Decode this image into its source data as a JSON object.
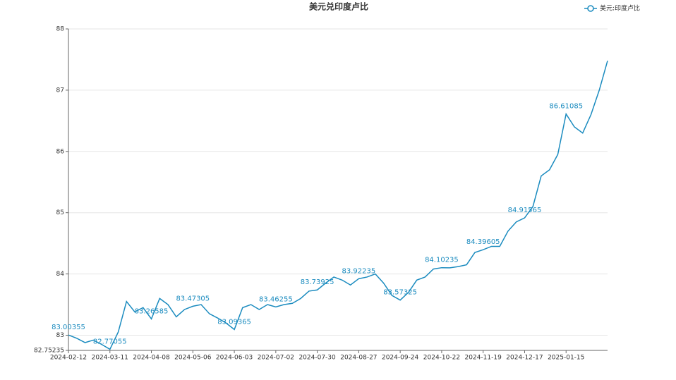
{
  "chart_data": {
    "type": "line",
    "title": "美元兑印度卢比",
    "categories": [
      "2024-02-12",
      null,
      null,
      null,
      null,
      "2024-03-11",
      null,
      null,
      null,
      null,
      "2024-04-08",
      null,
      null,
      null,
      null,
      "2024-05-06",
      null,
      null,
      null,
      null,
      "2024-06-03",
      null,
      null,
      null,
      null,
      "2024-07-02",
      null,
      null,
      null,
      null,
      "2024-07-30",
      null,
      null,
      null,
      null,
      "2024-08-27",
      null,
      null,
      null,
      null,
      "2024-09-24",
      null,
      null,
      null,
      null,
      "2024-10-22",
      null,
      null,
      null,
      null,
      "2024-11-19",
      null,
      null,
      null,
      null,
      "2024-12-17",
      null,
      null,
      null,
      null,
      "2025-01-15",
      null,
      null,
      null,
      null,
      null
    ],
    "series": [
      {
        "name": "美元:印度卢比",
        "color": "#1a8bbf",
        "values": [
          83.00355,
          82.95,
          82.88,
          82.92,
          82.85,
          82.77055,
          83.05,
          83.55,
          83.38,
          83.45,
          83.26585,
          83.6,
          83.5,
          83.3,
          83.42,
          83.47305,
          83.5,
          83.35,
          83.28,
          83.2,
          83.09365,
          83.45,
          83.5,
          83.42,
          83.5,
          83.46255,
          83.5,
          83.52,
          83.6,
          83.72,
          83.73925,
          83.85,
          83.95,
          83.9,
          83.82,
          83.92235,
          83.95,
          84.0,
          83.85,
          83.65,
          83.57325,
          83.7,
          83.9,
          83.95,
          84.08,
          84.10235,
          84.1,
          84.12,
          84.15,
          84.35,
          84.39605,
          84.45,
          84.45,
          84.7,
          84.85,
          84.91565,
          85.1,
          85.6,
          85.7,
          85.95,
          86.61085,
          86.4,
          86.3,
          86.6,
          87.0,
          87.48
        ],
        "value_labels": [
          "83.00355",
          null,
          null,
          null,
          null,
          "82.77055",
          null,
          null,
          null,
          null,
          "83.26585",
          null,
          null,
          null,
          null,
          "83.47305",
          null,
          null,
          null,
          null,
          "83.09365",
          null,
          null,
          null,
          null,
          "83.46255",
          null,
          null,
          null,
          null,
          "83.73925",
          null,
          null,
          null,
          null,
          "83.92235",
          null,
          null,
          null,
          null,
          "83.57325",
          null,
          null,
          null,
          null,
          "84.10235",
          null,
          null,
          null,
          null,
          "84.39605",
          null,
          null,
          null,
          null,
          "84.91565",
          null,
          null,
          null,
          null,
          "86.61085",
          null,
          null,
          null,
          null,
          null
        ]
      }
    ],
    "ylim": [
      82.75235,
      88
    ],
    "yticks": [
      82.75235,
      83,
      84,
      85,
      86,
      87,
      88
    ],
    "grid": true
  }
}
